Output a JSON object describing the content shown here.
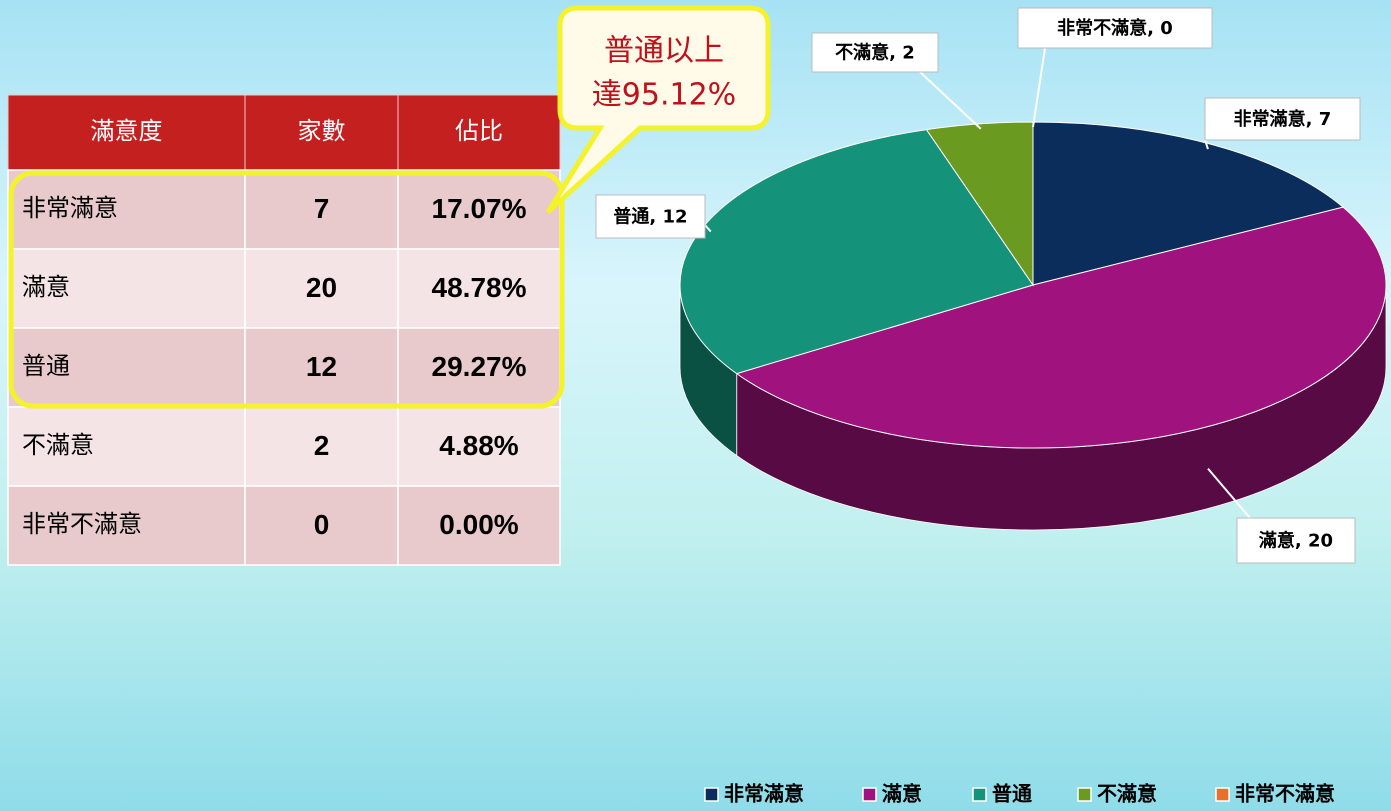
{
  "table": {
    "header": [
      "滿意度",
      "家數",
      "佔比"
    ],
    "rows": [
      [
        "非常滿意",
        7,
        "17.07%"
      ],
      [
        "滿意",
        20,
        "48.78%"
      ],
      [
        "普通",
        12,
        "29.27%"
      ],
      [
        "不滿意",
        2,
        "4.88%"
      ],
      [
        "非常不滿意",
        0,
        "0.00%"
      ]
    ]
  },
  "callout": [
    "普通以上",
    "達95.12%"
  ],
  "chart_data": {
    "type": "pie",
    "categories": [
      "非常滿意",
      "滿意",
      "普通",
      "不滿意",
      "非常不滿意"
    ],
    "values": [
      7,
      20,
      12,
      2,
      0
    ],
    "value_labels": [
      "非常滿意, 7",
      "滿意, 20",
      "普通, 12",
      "不滿意, 2",
      "非常不滿意, 0"
    ],
    "colors": [
      "#0b2d5c",
      "#a0127e",
      "#14937a",
      "#6a9a1f",
      "#e8702a"
    ],
    "legend": "bottom-right"
  }
}
